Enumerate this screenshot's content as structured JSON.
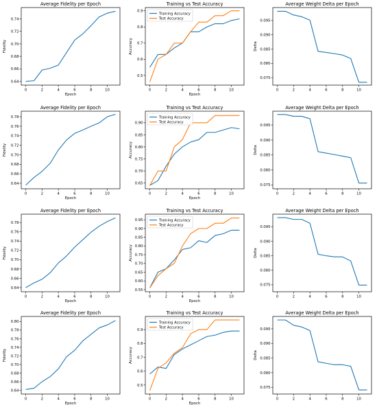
{
  "figure": {
    "background": "#ffffff",
    "colors": {
      "blue": "#1f77b4",
      "orange": "#ff7f0e"
    }
  },
  "chart_data": [
    {
      "type": "line",
      "title": "Average Fidelity per Epoch",
      "xlabel": "Epoch",
      "ylabel": "Fidelity",
      "xlim": [
        -0.55,
        11.55
      ],
      "ylim": [
        0.634,
        0.758
      ],
      "xticks": [
        0,
        2,
        4,
        6,
        8,
        10
      ],
      "yticks": [
        0.64,
        0.66,
        0.68,
        0.7,
        0.72,
        0.74
      ],
      "ytick_decimals": 2,
      "legend": null,
      "grid": false,
      "series": [
        {
          "color": "#1f77b4",
          "x": [
            0,
            1,
            2,
            3,
            4,
            5,
            6,
            7,
            8,
            9,
            10,
            11
          ],
          "values": [
            0.64,
            0.641,
            0.658,
            0.661,
            0.666,
            0.686,
            0.706,
            0.716,
            0.729,
            0.743,
            0.749,
            0.752
          ]
        }
      ]
    },
    {
      "type": "line",
      "title": "Training vs Test Accuracy",
      "xlabel": "Epoch",
      "ylabel": "Accuracy",
      "xlim": [
        -0.55,
        11.55
      ],
      "ylim": [
        0.44,
        0.92
      ],
      "xticks": [
        0,
        2,
        4,
        6,
        8,
        10
      ],
      "yticks": [
        0.5,
        0.6,
        0.7,
        0.8,
        0.9
      ],
      "ytick_decimals": 1,
      "legend": "upper left",
      "grid": false,
      "series": [
        {
          "name": "Training Accuracy",
          "color": "#1f77b4",
          "x": [
            0,
            1,
            2,
            3,
            4,
            5,
            6,
            7,
            8,
            9,
            10,
            11
          ],
          "values": [
            0.55,
            0.63,
            0.63,
            0.67,
            0.7,
            0.77,
            0.77,
            0.8,
            0.82,
            0.82,
            0.84,
            0.85
          ]
        },
        {
          "name": "Test Accuracy",
          "color": "#ff7f0e",
          "x": [
            0,
            1,
            2,
            3,
            4,
            5,
            6,
            7,
            8,
            9,
            10,
            11
          ],
          "values": [
            0.46,
            0.6,
            0.63,
            0.7,
            0.7,
            0.77,
            0.83,
            0.83,
            0.87,
            0.87,
            0.9,
            0.9
          ]
        }
      ]
    },
    {
      "type": "line",
      "title": "Average Weight Delta per Epoch",
      "xlabel": "",
      "ylabel": "Delta",
      "xlim": [
        -0.55,
        11.55
      ],
      "ylim": [
        0.0724,
        0.0995
      ],
      "xticks": [
        0,
        2,
        4,
        6,
        8,
        10
      ],
      "yticks": [
        0.075,
        0.08,
        0.085,
        0.09,
        0.095
      ],
      "ytick_decimals": 3,
      "legend": null,
      "grid": false,
      "series": [
        {
          "color": "#1f77b4",
          "x": [
            0,
            1,
            2,
            3,
            4,
            5,
            6,
            7,
            8,
            9,
            10,
            11
          ],
          "values": [
            0.0982,
            0.0982,
            0.0969,
            0.0963,
            0.0951,
            0.0842,
            0.0838,
            0.0834,
            0.0829,
            0.0817,
            0.0734,
            0.0734
          ]
        }
      ]
    },
    {
      "type": "line",
      "title": "Average Fidelity per Epoch",
      "xlabel": "Epoch",
      "ylabel": "Fidelity",
      "xlim": [
        -0.55,
        11.55
      ],
      "ylim": [
        0.6284,
        0.7916
      ],
      "xticks": [
        0,
        2,
        4,
        6,
        8,
        10
      ],
      "yticks": [
        0.64,
        0.66,
        0.68,
        0.7,
        0.72,
        0.74,
        0.76,
        0.78
      ],
      "ytick_decimals": 2,
      "legend": null,
      "grid": false,
      "series": [
        {
          "color": "#1f77b4",
          "x": [
            0,
            1,
            2,
            3,
            4,
            5,
            6,
            7,
            8,
            9,
            10,
            11
          ],
          "values": [
            0.636,
            0.652,
            0.665,
            0.682,
            0.71,
            0.731,
            0.745,
            0.752,
            0.76,
            0.767,
            0.78,
            0.785
          ]
        }
      ]
    },
    {
      "type": "line",
      "title": "Training vs Test Accuracy",
      "xlabel": "Epoch",
      "ylabel": "Accuracy",
      "xlim": [
        -0.55,
        11.55
      ],
      "ylim": [
        0.626,
        0.948
      ],
      "xticks": [
        0,
        2,
        4,
        6,
        8,
        10
      ],
      "yticks": [
        0.65,
        0.7,
        0.75,
        0.8,
        0.85,
        0.9
      ],
      "ytick_decimals": 2,
      "legend": "upper left",
      "grid": false,
      "series": [
        {
          "name": "Training Accuracy",
          "color": "#1f77b4",
          "x": [
            0,
            1,
            2,
            3,
            4,
            5,
            6,
            7,
            8,
            9,
            10,
            11
          ],
          "values": [
            0.64,
            0.66,
            0.72,
            0.77,
            0.8,
            0.82,
            0.83,
            0.86,
            0.86,
            0.87,
            0.88,
            0.875
          ]
        },
        {
          "name": "Test Accuracy",
          "color": "#ff7f0e",
          "x": [
            0,
            1,
            2,
            3,
            4,
            5,
            6,
            7,
            8,
            9,
            10,
            11
          ],
          "values": [
            0.64,
            0.7,
            0.7,
            0.8,
            0.83,
            0.9,
            0.9,
            0.9,
            0.93,
            0.93,
            0.93,
            0.93
          ]
        }
      ]
    },
    {
      "type": "line",
      "title": "Average Weight Delta per Epoch",
      "xlabel": "",
      "ylabel": "Delta",
      "xlim": [
        -0.55,
        11.55
      ],
      "ylim": [
        0.0737,
        0.0996
      ],
      "xticks": [
        0,
        2,
        4,
        6,
        8,
        10
      ],
      "yticks": [
        0.075,
        0.08,
        0.085,
        0.09,
        0.095
      ],
      "ytick_decimals": 3,
      "legend": null,
      "grid": false,
      "series": [
        {
          "color": "#1f77b4",
          "x": [
            0,
            1,
            2,
            3,
            4,
            5,
            6,
            7,
            8,
            9,
            10,
            11
          ],
          "values": [
            0.0985,
            0.0985,
            0.0979,
            0.0979,
            0.0971,
            0.0861,
            0.0856,
            0.0851,
            0.0846,
            0.0841,
            0.0756,
            0.0756
          ]
        }
      ]
    },
    {
      "type": "line",
      "title": "Average Fidelity per Epoch",
      "xlabel": "Epoch",
      "ylabel": "Fidelity",
      "xlim": [
        -0.55,
        11.55
      ],
      "ylim": [
        0.6311,
        0.7979
      ],
      "xticks": [
        0,
        2,
        4,
        6,
        8,
        10
      ],
      "yticks": [
        0.64,
        0.66,
        0.68,
        0.7,
        0.72,
        0.74,
        0.76,
        0.78
      ],
      "ytick_decimals": 2,
      "legend": null,
      "grid": false,
      "series": [
        {
          "color": "#1f77b4",
          "x": [
            0,
            1,
            2,
            3,
            4,
            5,
            6,
            7,
            8,
            9,
            10,
            11
          ],
          "values": [
            0.64,
            0.65,
            0.658,
            0.672,
            0.693,
            0.708,
            0.727,
            0.743,
            0.759,
            0.772,
            0.782,
            0.79
          ]
        }
      ]
    },
    {
      "type": "line",
      "title": "Training vs Test Accuracy",
      "xlabel": "Epoch",
      "ylabel": "Accuracy",
      "xlim": [
        -0.55,
        11.55
      ],
      "ylim": [
        0.538,
        0.982
      ],
      "xticks": [
        0,
        2,
        4,
        6,
        8,
        10
      ],
      "yticks": [
        0.55,
        0.6,
        0.65,
        0.7,
        0.75,
        0.8,
        0.85,
        0.9,
        0.95
      ],
      "ytick_decimals": 2,
      "legend": "upper left",
      "grid": false,
      "series": [
        {
          "name": "Training Accuracy",
          "color": "#1f77b4",
          "x": [
            0,
            1,
            2,
            3,
            4,
            5,
            6,
            7,
            8,
            9,
            10,
            11
          ],
          "values": [
            0.56,
            0.65,
            0.67,
            0.72,
            0.78,
            0.79,
            0.83,
            0.82,
            0.86,
            0.87,
            0.89,
            0.89
          ]
        },
        {
          "name": "Test Accuracy",
          "color": "#ff7f0e",
          "x": [
            0,
            1,
            2,
            3,
            4,
            5,
            6,
            7,
            8,
            9,
            10,
            11
          ],
          "values": [
            0.56,
            0.63,
            0.67,
            0.7,
            0.8,
            0.87,
            0.9,
            0.9,
            0.93,
            0.93,
            0.96,
            0.96
          ]
        }
      ]
    },
    {
      "type": "line",
      "title": "Average Weight Delta per Epoch",
      "xlabel": "",
      "ylabel": "Delta",
      "xlim": [
        -0.55,
        11.55
      ],
      "ylim": [
        0.0726,
        0.0993
      ],
      "xticks": [
        0,
        2,
        4,
        6,
        8,
        10
      ],
      "yticks": [
        0.075,
        0.08,
        0.085,
        0.09,
        0.095
      ],
      "ytick_decimals": 3,
      "legend": null,
      "grid": false,
      "series": [
        {
          "color": "#1f77b4",
          "x": [
            0,
            1,
            2,
            3,
            4,
            5,
            6,
            7,
            8,
            9,
            10,
            11
          ],
          "values": [
            0.0981,
            0.0981,
            0.0975,
            0.0975,
            0.0962,
            0.0855,
            0.085,
            0.0846,
            0.0846,
            0.0832,
            0.0749,
            0.0749
          ]
        }
      ]
    },
    {
      "type": "line",
      "title": "Average Fidelity per Epoch",
      "xlabel": "Epoch",
      "ylabel": "Fidelity",
      "xlim": [
        -0.55,
        11.55
      ],
      "ylim": [
        0.6315,
        0.8116
      ],
      "xticks": [
        0,
        2,
        4,
        6,
        8,
        10
      ],
      "yticks": [
        0.64,
        0.66,
        0.68,
        0.7,
        0.72,
        0.74,
        0.76,
        0.78,
        0.8
      ],
      "ytick_decimals": 2,
      "legend": null,
      "grid": false,
      "series": [
        {
          "color": "#1f77b4",
          "x": [
            0,
            1,
            2,
            3,
            4,
            5,
            6,
            7,
            8,
            9,
            10,
            11
          ],
          "values": [
            0.642,
            0.645,
            0.66,
            0.672,
            0.69,
            0.718,
            0.733,
            0.755,
            0.77,
            0.785,
            0.792,
            0.802
          ]
        }
      ]
    },
    {
      "type": "line",
      "title": "Training vs Test Accuracy",
      "xlabel": "Epoch",
      "ylabel": "Accuracy",
      "xlim": [
        -0.55,
        11.55
      ],
      "ylim": [
        0.435,
        0.995
      ],
      "xticks": [
        0,
        2,
        4,
        6,
        8,
        10
      ],
      "yticks": [
        0.5,
        0.6,
        0.7,
        0.8,
        0.9
      ],
      "ytick_decimals": 1,
      "legend": "upper left",
      "grid": false,
      "series": [
        {
          "name": "Training Accuracy",
          "color": "#1f77b4",
          "x": [
            0,
            1,
            2,
            3,
            4,
            5,
            6,
            7,
            8,
            9,
            10,
            11
          ],
          "values": [
            0.58,
            0.63,
            0.62,
            0.72,
            0.76,
            0.79,
            0.82,
            0.85,
            0.86,
            0.88,
            0.89,
            0.89
          ]
        },
        {
          "name": "Test Accuracy",
          "color": "#ff7f0e",
          "x": [
            0,
            1,
            2,
            3,
            4,
            5,
            6,
            7,
            8,
            9,
            10,
            11
          ],
          "values": [
            0.46,
            0.62,
            0.66,
            0.73,
            0.77,
            0.87,
            0.9,
            0.9,
            0.97,
            0.97,
            0.97,
            0.97
          ]
        }
      ]
    },
    {
      "type": "line",
      "title": "Average Weight Delta per Epoch",
      "xlabel": "",
      "ylabel": "Delta",
      "xlim": [
        -0.55,
        11.55
      ],
      "ylim": [
        0.0727,
        0.0992
      ],
      "xticks": [
        0,
        2,
        4,
        6,
        8,
        10
      ],
      "yticks": [
        0.075,
        0.08,
        0.085,
        0.09,
        0.095
      ],
      "ytick_decimals": 3,
      "legend": null,
      "grid": false,
      "series": [
        {
          "color": "#1f77b4",
          "x": [
            0,
            1,
            2,
            3,
            4,
            5,
            6,
            7,
            8,
            9,
            10,
            11
          ],
          "values": [
            0.098,
            0.098,
            0.0962,
            0.0956,
            0.0944,
            0.0837,
            0.0832,
            0.0827,
            0.0827,
            0.0822,
            0.0741,
            0.0741
          ]
        }
      ]
    }
  ]
}
